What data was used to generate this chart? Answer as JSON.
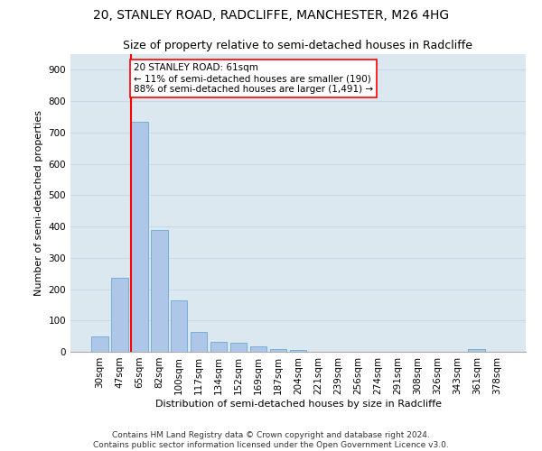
{
  "title": "20, STANLEY ROAD, RADCLIFFE, MANCHESTER, M26 4HG",
  "subtitle": "Size of property relative to semi-detached houses in Radcliffe",
  "xlabel": "Distribution of semi-detached houses by size in Radcliffe",
  "ylabel": "Number of semi-detached properties",
  "categories": [
    "30sqm",
    "47sqm",
    "65sqm",
    "82sqm",
    "100sqm",
    "117sqm",
    "134sqm",
    "152sqm",
    "169sqm",
    "187sqm",
    "204sqm",
    "221sqm",
    "239sqm",
    "256sqm",
    "274sqm",
    "291sqm",
    "308sqm",
    "326sqm",
    "343sqm",
    "361sqm",
    "378sqm"
  ],
  "values": [
    48,
    235,
    735,
    390,
    163,
    63,
    32,
    30,
    17,
    8,
    6,
    0,
    0,
    0,
    0,
    0,
    0,
    0,
    0,
    8,
    0
  ],
  "bar_color": "#aec6e8",
  "bar_edgecolor": "#6aaad4",
  "pct_smaller": "11%",
  "pct_larger": "88%",
  "n_smaller": 190,
  "n_larger": 1491,
  "ylim": [
    0,
    950
  ],
  "yticks": [
    0,
    100,
    200,
    300,
    400,
    500,
    600,
    700,
    800,
    900
  ],
  "grid_color": "#c8d8ea",
  "background_color": "#dce8f0",
  "footer_line1": "Contains HM Land Registry data © Crown copyright and database right 2024.",
  "footer_line2": "Contains public sector information licensed under the Open Government Licence v3.0.",
  "title_fontsize": 10,
  "subtitle_fontsize": 9,
  "axis_label_fontsize": 8,
  "tick_fontsize": 7.5,
  "annotation_fontsize": 7.5,
  "footer_fontsize": 6.5
}
